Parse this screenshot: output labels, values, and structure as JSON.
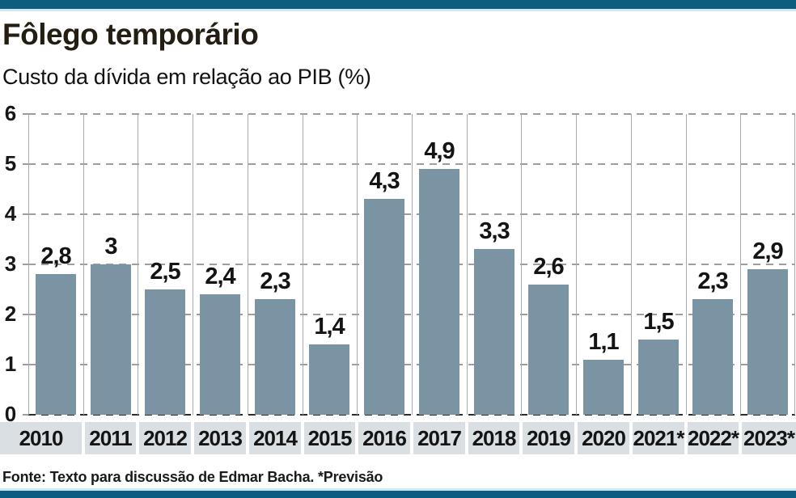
{
  "accent": {
    "bar_color": "#0d5d80",
    "bar_light_edge": "#cfe8f2"
  },
  "header": {
    "title": "Fôlego temporário",
    "subtitle": "Custo da dívida em relação ao PIB (%)"
  },
  "chart_data": {
    "type": "bar",
    "title": "Fôlego temporário",
    "subtitle": "Custo da dívida em relação ao PIB (%)",
    "categories": [
      "2010",
      "2011",
      "2012",
      "2013",
      "2014",
      "2015",
      "2016",
      "2017",
      "2018",
      "2019",
      "2020",
      "2021*",
      "2022*",
      "2023*"
    ],
    "values": [
      2.8,
      3,
      2.5,
      2.4,
      2.3,
      1.4,
      4.3,
      4.9,
      3.3,
      2.6,
      1.1,
      1.5,
      2.3,
      2.9
    ],
    "value_labels": [
      "2,8",
      "3",
      "2,5",
      "2,4",
      "2,3",
      "1,4",
      "4,3",
      "4,9",
      "3,3",
      "2,6",
      "1,1",
      "1,5",
      "2,3",
      "2,9"
    ],
    "xlabel": "",
    "ylabel": "",
    "ylim": [
      0,
      6
    ],
    "yticks": [
      0,
      1,
      2,
      3,
      4,
      5,
      6
    ],
    "grid": "horizontal dashed gray lines at each integer; solid gray vertical separators between year columns",
    "legend": null,
    "bar_color": "#7b94a3",
    "category_band_color": "#d9dfe3"
  },
  "footer": {
    "source": "Fonte: Texto para discussão de Edmar Bacha. *Previsão"
  }
}
